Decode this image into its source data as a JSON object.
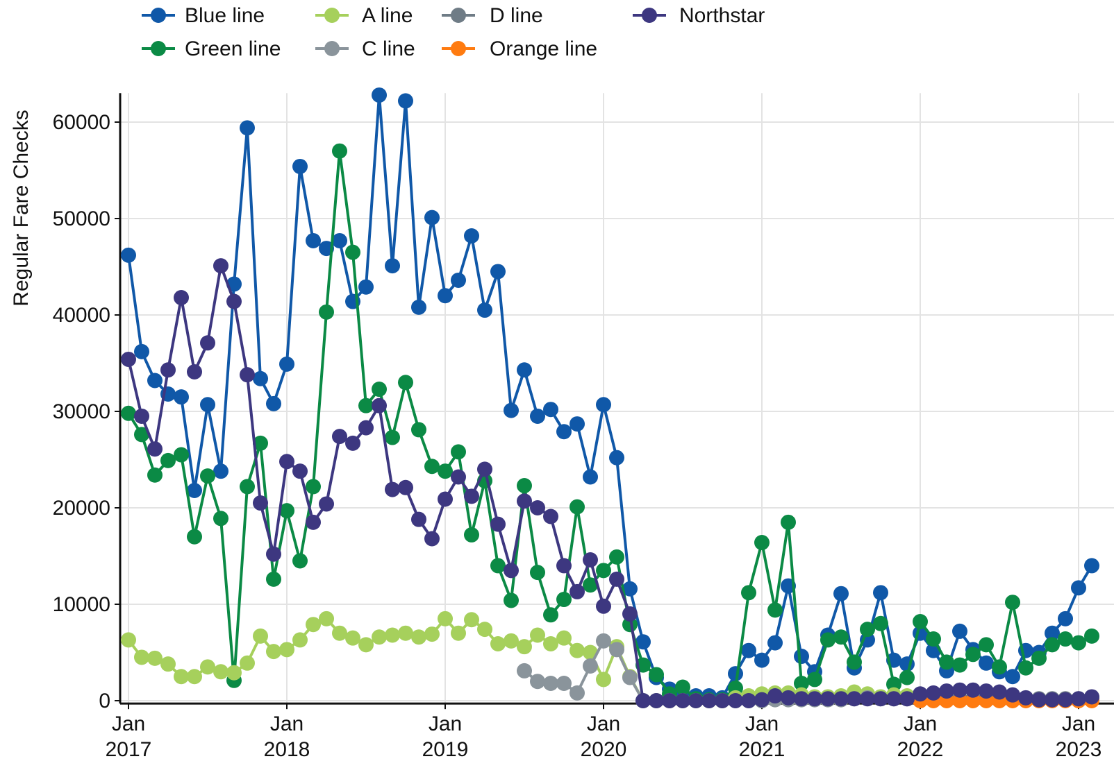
{
  "chart_data": {
    "type": "line",
    "y_label": "Regular Fare Checks",
    "x": [
      "2017-01",
      "2017-02",
      "2017-03",
      "2017-04",
      "2017-05",
      "2017-06",
      "2017-07",
      "2017-08",
      "2017-09",
      "2017-10",
      "2017-11",
      "2017-12",
      "2018-01",
      "2018-02",
      "2018-03",
      "2018-04",
      "2018-05",
      "2018-06",
      "2018-07",
      "2018-08",
      "2018-09",
      "2018-10",
      "2018-11",
      "2018-12",
      "2019-01",
      "2019-02",
      "2019-03",
      "2019-04",
      "2019-05",
      "2019-06",
      "2019-07",
      "2019-08",
      "2019-09",
      "2019-10",
      "2019-11",
      "2019-12",
      "2020-01",
      "2020-02",
      "2020-03",
      "2020-04",
      "2020-05",
      "2020-06",
      "2020-07",
      "2020-08",
      "2020-09",
      "2020-10",
      "2020-11",
      "2020-12",
      "2021-01",
      "2021-02",
      "2021-03",
      "2021-04",
      "2021-05",
      "2021-06",
      "2021-07",
      "2021-08",
      "2021-09",
      "2021-10",
      "2021-11",
      "2021-12",
      "2022-01",
      "2022-02",
      "2022-03",
      "2022-04",
      "2022-05",
      "2022-06",
      "2022-07",
      "2022-08",
      "2022-09",
      "2022-10",
      "2022-11",
      "2022-12",
      "2023-01",
      "2023-02"
    ],
    "series": [
      {
        "name": "Blue line",
        "color": "#1058a8",
        "values": [
          46200,
          36200,
          33200,
          31800,
          31500,
          21800,
          30700,
          23800,
          43200,
          59400,
          33400,
          30800,
          34900,
          55400,
          47700,
          46900,
          47700,
          41400,
          42900,
          62800,
          45100,
          62200,
          40800,
          50100,
          42000,
          43600,
          48200,
          40500,
          44500,
          30100,
          34300,
          29500,
          30200,
          27900,
          28700,
          23200,
          30700,
          25200,
          11600,
          6100,
          2400,
          1200,
          500,
          500,
          500,
          300,
          2800,
          5200,
          4200,
          6000,
          11900,
          4600,
          3000,
          6800,
          11100,
          3400,
          6300,
          11200,
          4200,
          3800,
          7000,
          5200,
          3100,
          7200,
          5300,
          3900,
          3000,
          2500,
          5200,
          5000,
          7000,
          8500,
          11700,
          14000
        ]
      },
      {
        "name": "Green line",
        "color": "#0b8a45",
        "values": [
          29800,
          27600,
          23400,
          24900,
          25500,
          17000,
          23300,
          18900,
          2100,
          22200,
          26700,
          12600,
          19700,
          14500,
          22200,
          40300,
          57000,
          46500,
          30600,
          32300,
          27300,
          33000,
          28100,
          24300,
          23800,
          25800,
          17200,
          22800,
          14000,
          10400,
          22300,
          13300,
          8900,
          10500,
          20100,
          12000,
          13500,
          14900,
          7900,
          3700,
          2700,
          700,
          1400,
          200,
          100,
          100,
          1300,
          11200,
          16400,
          9400,
          18500,
          1800,
          2200,
          6300,
          6600,
          4000,
          7400,
          8000,
          1700,
          2400,
          8200,
          6400,
          4000,
          3700,
          4800,
          5800,
          3500,
          10200,
          3400,
          4400,
          5800,
          6400,
          6000,
          6700
        ]
      },
      {
        "name": "A line",
        "color": "#a6d05c",
        "values": [
          6300,
          4500,
          4400,
          3800,
          2500,
          2500,
          3500,
          3000,
          2900,
          3900,
          6700,
          5100,
          5300,
          6300,
          7900,
          8500,
          7000,
          6500,
          5800,
          6600,
          6800,
          7000,
          6600,
          6900,
          8500,
          7000,
          8400,
          7400,
          5900,
          6200,
          5600,
          6800,
          5900,
          6500,
          5200,
          5000,
          2200,
          5600,
          2500,
          0,
          0,
          0,
          0,
          0,
          0,
          0,
          300,
          500,
          700,
          800,
          800,
          600,
          400,
          400,
          500,
          900,
          700,
          400,
          600,
          500,
          400,
          300,
          200,
          100,
          100,
          100,
          100,
          100,
          100,
          100,
          100,
          100,
          100,
          100
        ]
      },
      {
        "name": "C line",
        "color": "#8a949b",
        "values": [
          null,
          null,
          null,
          null,
          null,
          null,
          null,
          null,
          null,
          null,
          null,
          null,
          null,
          null,
          null,
          null,
          null,
          null,
          null,
          null,
          null,
          null,
          null,
          null,
          null,
          null,
          null,
          null,
          null,
          null,
          3100,
          2000,
          1800,
          1800,
          800,
          3600,
          6200,
          5300,
          2400,
          0,
          0,
          0,
          0,
          0,
          0,
          0,
          0,
          0,
          0,
          100,
          100,
          100,
          100,
          100,
          100,
          200,
          300,
          200,
          200,
          200,
          200,
          200,
          200,
          100,
          100,
          100,
          100,
          100,
          100,
          100,
          100,
          100,
          100,
          100
        ]
      },
      {
        "name": "D line",
        "color": "#6f7c86",
        "values": [
          null,
          null,
          null,
          null,
          null,
          null,
          null,
          null,
          null,
          null,
          null,
          null,
          null,
          null,
          null,
          null,
          null,
          null,
          null,
          null,
          null,
          null,
          null,
          null,
          null,
          null,
          null,
          null,
          null,
          null,
          null,
          null,
          null,
          null,
          null,
          null,
          null,
          null,
          null,
          null,
          null,
          null,
          null,
          null,
          null,
          null,
          null,
          null,
          null,
          null,
          null,
          null,
          null,
          null,
          null,
          null,
          null,
          null,
          null,
          null,
          200,
          200,
          200,
          200,
          200,
          200,
          200,
          200,
          200,
          200,
          200,
          200,
          200,
          200
        ]
      },
      {
        "name": "Orange line",
        "color": "#ff7b10",
        "values": [
          null,
          null,
          null,
          null,
          null,
          null,
          null,
          null,
          null,
          null,
          null,
          null,
          null,
          null,
          null,
          null,
          null,
          null,
          null,
          null,
          null,
          null,
          null,
          null,
          null,
          null,
          null,
          null,
          null,
          null,
          null,
          null,
          null,
          null,
          null,
          null,
          null,
          null,
          null,
          null,
          null,
          null,
          null,
          null,
          null,
          null,
          null,
          null,
          null,
          null,
          null,
          null,
          null,
          null,
          null,
          null,
          null,
          null,
          null,
          null,
          0,
          0,
          0,
          0,
          0,
          0,
          0,
          0,
          0,
          0,
          0,
          0,
          0,
          0
        ]
      },
      {
        "name": "Northstar",
        "color": "#3d3780",
        "values": [
          35400,
          29500,
          26100,
          34300,
          41800,
          34100,
          37100,
          45100,
          41400,
          33800,
          20500,
          15200,
          24800,
          23800,
          18500,
          20400,
          27400,
          26700,
          28300,
          30600,
          21900,
          22100,
          18800,
          16800,
          20900,
          23200,
          21200,
          24000,
          18300,
          13500,
          20700,
          20000,
          19100,
          14000,
          11300,
          14600,
          9800,
          12600,
          9000,
          0,
          0,
          0,
          0,
          0,
          0,
          0,
          0,
          0,
          100,
          500,
          300,
          200,
          200,
          200,
          200,
          200,
          200,
          200,
          200,
          200,
          700,
          800,
          1000,
          1100,
          1100,
          1000,
          900,
          600,
          300,
          100,
          100,
          100,
          200,
          400
        ]
      }
    ],
    "xlim": [
      "2016-12",
      "2023-03"
    ],
    "xticks": [
      {
        "value": "2017-01",
        "label": "Jan 2017"
      },
      {
        "value": "2018-01",
        "label": "Jan 2018"
      },
      {
        "value": "2019-01",
        "label": "Jan 2019"
      },
      {
        "value": "2020-01",
        "label": "Jan 2020"
      },
      {
        "value": "2021-01",
        "label": "Jan 2021"
      },
      {
        "value": "2022-01",
        "label": "Jan 2022"
      },
      {
        "value": "2023-01",
        "label": "Jan 2023"
      }
    ],
    "ylim": [
      -300,
      63000
    ],
    "yticks": [
      0,
      10000,
      20000,
      30000,
      40000,
      50000,
      60000
    ],
    "grid": true,
    "legend": "top"
  }
}
